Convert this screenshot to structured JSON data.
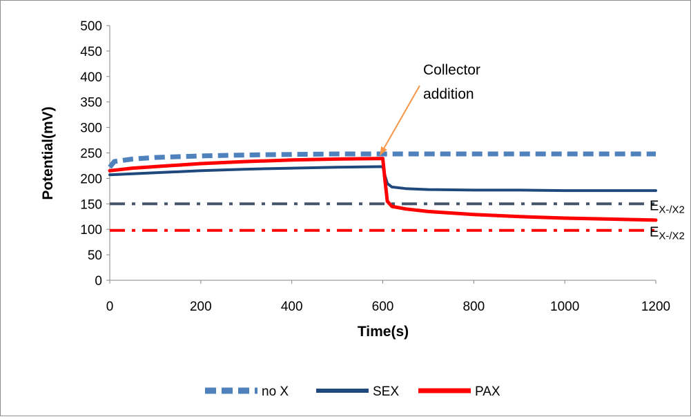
{
  "chart_data": {
    "type": "line",
    "title": "",
    "xlabel": "Time(s)",
    "ylabel": "Potential(mV)",
    "xlim": [
      0,
      1200
    ],
    "ylim": [
      0,
      500
    ],
    "x_ticks": [
      0,
      200,
      400,
      600,
      800,
      1000,
      1200
    ],
    "y_ticks": [
      0,
      50,
      100,
      150,
      200,
      250,
      300,
      350,
      400,
      450,
      500
    ],
    "grid": false,
    "legend": "bottom",
    "series": [
      {
        "name": "no X",
        "color": "#4f81bd",
        "style": "dashed",
        "x": [
          0,
          10,
          50,
          100,
          200,
          300,
          400,
          500,
          600,
          700,
          800,
          900,
          1000,
          1100,
          1200
        ],
        "y": [
          222,
          233,
          238,
          241,
          244,
          246,
          247,
          248,
          248,
          248,
          248,
          248,
          248,
          248,
          248
        ]
      },
      {
        "name": "SEX",
        "color": "#1f497d",
        "style": "solid",
        "x": [
          0,
          50,
          100,
          200,
          300,
          400,
          500,
          600,
          605,
          610,
          620,
          650,
          700,
          800,
          900,
          1000,
          1100,
          1200
        ],
        "y": [
          207,
          209,
          211,
          215,
          218,
          220,
          222,
          223,
          205,
          190,
          183,
          180,
          178,
          177,
          177,
          176,
          176,
          176
        ]
      },
      {
        "name": "PAX",
        "color": "#ff0000",
        "style": "solid",
        "x": [
          0,
          50,
          100,
          150,
          200,
          300,
          400,
          500,
          600,
          605,
          610,
          620,
          650,
          700,
          800,
          900,
          1000,
          1100,
          1200
        ],
        "y": [
          215,
          220,
          223,
          226,
          229,
          233,
          236,
          238,
          239,
          195,
          155,
          145,
          140,
          135,
          129,
          125,
          122,
          120,
          118
        ]
      },
      {
        "name": "",
        "color": "#44546a",
        "style": "dash-dot",
        "x": [
          0,
          1200
        ],
        "y": [
          150,
          150
        ]
      },
      {
        "name": "",
        "color": "#ff0000",
        "style": "dash-dot",
        "x": [
          0,
          1200
        ],
        "y": [
          98,
          98
        ]
      }
    ],
    "annotations": [
      {
        "id": "collector",
        "lines": [
          "Collector",
          "addition"
        ],
        "arrow_x": 600,
        "arrow_y": 240
      },
      {
        "id": "ref1",
        "main": "E",
        "sub": "X-/X2",
        "y": 150
      },
      {
        "id": "ref2",
        "main": "E",
        "sub": "X-/X2",
        "y": 98
      }
    ]
  }
}
